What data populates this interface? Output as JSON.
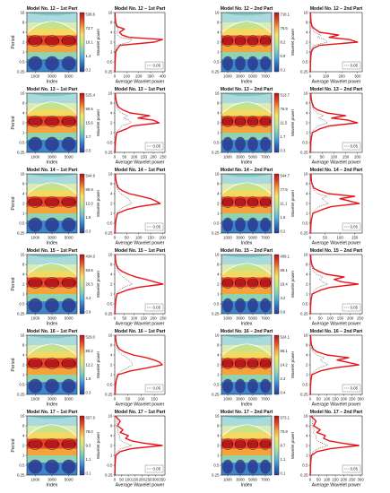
{
  "page": {
    "background": "#ffffff"
  },
  "colors": {
    "line": "#e8141b",
    "axis": "#222222",
    "significance_dash": "#333333",
    "colormap": [
      "#2a3a8f",
      "#2e6fc1",
      "#4fb3d9",
      "#8fd3b0",
      "#c9e58a",
      "#f2e36b",
      "#f6a23a",
      "#e2452a",
      "#b3121a"
    ]
  },
  "common": {
    "period_label": "Period",
    "index_label": "Index",
    "avg_power_label": "Average Wavelet power",
    "colorbar_label": "Wavelet power",
    "period_ticks": [
      "16",
      "8",
      "4",
      "2",
      "1",
      "0.5",
      "0.25"
    ],
    "legend_label": "0.05"
  },
  "chart_data": [
    {
      "type": "heatmap",
      "title": "Model No. 12 – 1st Part",
      "xlabel": "Index",
      "ylabel": "Period",
      "x_ticks": [
        "1000",
        "3000",
        "5000"
      ],
      "colorbar_ticks": [
        "538.6",
        "73.7",
        "10.1",
        "1.4",
        "0.2"
      ],
      "colorbar_label": "Wavelet power",
      "y_ticks": [
        "16",
        "8",
        "4",
        "2",
        "1",
        "0.5",
        "0.25"
      ]
    },
    {
      "type": "line",
      "title": "Model No. 12 – 1st Part",
      "xlabel": "Average Wavelet power",
      "ylabel": "",
      "x_ticks": [
        "0",
        "100",
        "200",
        "300",
        "400"
      ],
      "xlim": [
        0,
        420
      ],
      "legend": "0.05",
      "period": [
        0.25,
        0.35,
        0.5,
        0.7,
        1,
        1.3,
        1.6,
        2,
        2.4,
        2.8,
        3.3,
        4,
        5,
        6,
        8,
        11,
        16
      ],
      "power": [
        0,
        2,
        3,
        5,
        8,
        25,
        45,
        330,
        400,
        120,
        60,
        40,
        80,
        20,
        8,
        4,
        2
      ]
    },
    {
      "type": "heatmap",
      "title": "Model No. 12 – 2nd Part",
      "xlabel": "Index",
      "ylabel": "",
      "x_ticks": [
        "1000",
        "3000",
        "5000",
        "7000"
      ],
      "colorbar_ticks": [
        "718.1",
        "76.5",
        "8.2",
        "0.9",
        "0.1"
      ],
      "colorbar_label": "Wavelet power",
      "y_ticks": [
        "16",
        "8",
        "4",
        "2",
        "1",
        "0.5",
        "0.25"
      ]
    },
    {
      "type": "line",
      "title": "Model No. 12 – 2nd Part",
      "xlabel": "Average Wavelet power",
      "ylabel": "",
      "x_ticks": [
        "0",
        "100",
        "200",
        "300"
      ],
      "xlim": [
        0,
        330
      ],
      "legend": "0.05",
      "period": [
        0.25,
        0.35,
        0.5,
        0.7,
        1,
        1.3,
        1.6,
        2,
        2.4,
        2.8,
        3.3,
        4,
        5,
        6,
        8,
        11,
        16
      ],
      "power": [
        0,
        1,
        2,
        4,
        7,
        20,
        60,
        300,
        250,
        120,
        180,
        60,
        30,
        12,
        6,
        3,
        2
      ]
    },
    {
      "type": "heatmap",
      "title": "Model No. 13 – 1st Part",
      "xlabel": "Index",
      "ylabel": "Period",
      "x_ticks": [
        "1000",
        "3000",
        "5000"
      ],
      "colorbar_ticks": [
        "525.4",
        "90.5",
        "15.6",
        "2.7",
        "0.5"
      ],
      "colorbar_label": "Wavelet power",
      "y_ticks": [
        "16",
        "8",
        "4",
        "2",
        "1",
        "0.5",
        "0.25"
      ]
    },
    {
      "type": "line",
      "title": "Model No. 13 – 1st Part",
      "xlabel": "Average Wavelet power",
      "ylabel": "",
      "x_ticks": [
        "0",
        "50",
        "100",
        "150",
        "200",
        "250"
      ],
      "xlim": [
        0,
        260
      ],
      "legend": "0.05",
      "period": [
        0.25,
        0.35,
        0.5,
        0.7,
        1,
        1.3,
        1.6,
        2,
        2.4,
        2.8,
        3.3,
        4,
        5,
        6,
        8,
        11,
        16
      ],
      "power": [
        0,
        1,
        3,
        6,
        10,
        60,
        90,
        230,
        200,
        120,
        180,
        80,
        40,
        20,
        10,
        5,
        3
      ]
    },
    {
      "type": "heatmap",
      "title": "Model No. 13 – 2nd Part",
      "xlabel": "Index",
      "ylabel": "",
      "x_ticks": [
        "1000",
        "3000",
        "5000",
        "7000"
      ],
      "colorbar_ticks": [
        "513.7",
        "76.9",
        "11.5",
        "1.7",
        "0.3"
      ],
      "colorbar_label": "Wavelet power",
      "y_ticks": [
        "16",
        "8",
        "4",
        "2",
        "1",
        "0.5",
        "0.25"
      ]
    },
    {
      "type": "line",
      "title": "Model No. 13 – 2nd Part",
      "xlabel": "Average Wavelet power",
      "ylabel": "",
      "x_ticks": [
        "0",
        "50",
        "100",
        "150",
        "200"
      ],
      "xlim": [
        0,
        220
      ],
      "legend": "0.05",
      "period": [
        0.25,
        0.35,
        0.5,
        0.7,
        1,
        1.3,
        1.6,
        2,
        2.4,
        2.8,
        3.3,
        4,
        5,
        6,
        8,
        11,
        16
      ],
      "power": [
        0,
        1,
        2,
        5,
        9,
        40,
        80,
        200,
        160,
        90,
        150,
        70,
        30,
        15,
        8,
        4,
        2
      ]
    },
    {
      "type": "heatmap",
      "title": "Model No. 14 – 1st Part",
      "xlabel": "Index",
      "ylabel": "Period",
      "x_ticks": [
        "1000",
        "3000",
        "5000"
      ],
      "colorbar_ticks": [
        "544.9",
        "80.9",
        "12.0",
        "1.8",
        "0.3"
      ],
      "colorbar_label": "Wavelet power",
      "y_ticks": [
        "16",
        "8",
        "4",
        "2",
        "1",
        "0.5",
        "0.25"
      ]
    },
    {
      "type": "line",
      "title": "Model No. 14 – 1st Part",
      "xlabel": "Average Wavelet power",
      "ylabel": "",
      "x_ticks": [
        "0",
        "50",
        "100",
        "150",
        "200"
      ],
      "xlim": [
        0,
        210
      ],
      "legend": "0.05",
      "period": [
        0.25,
        0.35,
        0.5,
        0.7,
        1,
        1.3,
        1.6,
        2,
        2.4,
        2.8,
        3.3,
        4,
        5,
        6,
        8,
        11,
        16
      ],
      "power": [
        0,
        1,
        3,
        6,
        12,
        50,
        100,
        190,
        170,
        150,
        110,
        60,
        30,
        15,
        8,
        4,
        2
      ]
    },
    {
      "type": "heatmap",
      "title": "Model No. 14 – 2nd Part",
      "xlabel": "Index",
      "ylabel": "",
      "x_ticks": [
        "1000",
        "3000",
        "5000",
        "7000"
      ],
      "colorbar_ticks": [
        "544.7",
        "77.6",
        "11.1",
        "1.6",
        "0.2"
      ],
      "colorbar_label": "Wavelet power",
      "y_ticks": [
        "16",
        "8",
        "4",
        "2",
        "1",
        "0.5",
        "0.25"
      ]
    },
    {
      "type": "line",
      "title": "Model No. 14 – 2nd Part",
      "xlabel": "Average Wavelet power",
      "ylabel": "",
      "x_ticks": [
        "0",
        "50",
        "100",
        "150"
      ],
      "xlim": [
        0,
        175
      ],
      "legend": "0.05",
      "period": [
        0.25,
        0.35,
        0.5,
        0.7,
        1,
        1.3,
        1.6,
        2,
        2.4,
        2.8,
        3.3,
        4,
        5,
        6,
        8,
        11,
        16
      ],
      "power": [
        0,
        1,
        2,
        5,
        9,
        40,
        70,
        165,
        130,
        100,
        150,
        60,
        30,
        12,
        6,
        3,
        2
      ]
    },
    {
      "type": "heatmap",
      "title": "Model No. 15 – 1st Part",
      "xlabel": "Index",
      "ylabel": "Period",
      "x_ticks": [
        "1000",
        "3000",
        "5000"
      ],
      "colorbar_ticks": [
        "434.0",
        "93.8",
        "20.3",
        "4.4",
        "0.9"
      ],
      "colorbar_label": "Wavelet power",
      "y_ticks": [
        "16",
        "8",
        "4",
        "2",
        "1",
        "0.5",
        "0.25"
      ]
    },
    {
      "type": "line",
      "title": "Model No. 15 – 1st Part",
      "xlabel": "Average Wavelet power",
      "ylabel": "",
      "x_ticks": [
        "0",
        "50",
        "100",
        "150",
        "200",
        "250"
      ],
      "xlim": [
        0,
        260
      ],
      "legend": "0.05",
      "period": [
        0.25,
        0.35,
        0.5,
        0.7,
        1,
        1.3,
        1.6,
        2,
        2.4,
        2.8,
        3.3,
        4,
        5,
        6,
        8,
        11,
        16
      ],
      "power": [
        0,
        1,
        3,
        6,
        12,
        60,
        120,
        250,
        200,
        160,
        110,
        70,
        35,
        18,
        8,
        4,
        2
      ]
    },
    {
      "type": "heatmap",
      "title": "Model No. 15 – 2nd Part",
      "xlabel": "Index",
      "ylabel": "",
      "x_ticks": [
        "1000",
        "3000",
        "5000",
        "7000"
      ],
      "colorbar_ticks": [
        "409.1",
        "89.1",
        "19.4",
        "4.2",
        "0.9"
      ],
      "colorbar_label": "Wavelet power",
      "y_ticks": [
        "16",
        "8",
        "4",
        "2",
        "1",
        "0.5",
        "0.25"
      ]
    },
    {
      "type": "line",
      "title": "Model No. 15 – 2nd Part",
      "xlabel": "Average Wavelet power",
      "ylabel": "",
      "x_ticks": [
        "0",
        "50",
        "100",
        "150",
        "200",
        "250"
      ],
      "xlim": [
        0,
        260
      ],
      "legend": "0.05",
      "period": [
        0.25,
        0.35,
        0.5,
        0.7,
        1,
        1.3,
        1.6,
        2,
        2.4,
        2.8,
        3.3,
        4,
        5,
        6,
        8,
        11,
        16
      ],
      "power": [
        0,
        1,
        2,
        5,
        10,
        50,
        100,
        240,
        150,
        120,
        170,
        80,
        40,
        18,
        8,
        4,
        2
      ]
    },
    {
      "type": "heatmap",
      "title": "Model No. 16 – 1st Part",
      "xlabel": "Index",
      "ylabel": "Period",
      "x_ticks": [
        "1000",
        "3000",
        "5000"
      ],
      "colorbar_ticks": [
        "529.0",
        "80.2",
        "12.2",
        "1.8",
        "0.3"
      ],
      "colorbar_label": "Wavelet power",
      "y_ticks": [
        "16",
        "8",
        "4",
        "2",
        "1",
        "0.5",
        "0.25"
      ]
    },
    {
      "type": "line",
      "title": "Model No. 16 – 1st Part",
      "xlabel": "Average Wavelet power",
      "ylabel": "",
      "x_ticks": [
        "0",
        "50",
        "100",
        "150"
      ],
      "xlim": [
        0,
        190
      ],
      "legend": "0.05",
      "period": [
        0.25,
        0.35,
        0.5,
        0.7,
        1,
        1.3,
        1.6,
        2,
        2.4,
        2.8,
        3.3,
        4,
        5,
        6,
        8,
        11,
        16
      ],
      "power": [
        0,
        1,
        3,
        6,
        12,
        60,
        120,
        180,
        170,
        150,
        120,
        70,
        35,
        18,
        8,
        4,
        2
      ]
    },
    {
      "type": "heatmap",
      "title": "Model No. 16 – 2nd Part",
      "xlabel": "Index",
      "ylabel": "",
      "x_ticks": [
        "1000",
        "3000",
        "5000",
        "7000"
      ],
      "colorbar_ticks": [
        "524.1",
        "86.1",
        "14.2",
        "2.3",
        "0.4"
      ],
      "colorbar_label": "Wavelet power",
      "y_ticks": [
        "16",
        "8",
        "4",
        "2",
        "1",
        "0.5",
        "0.25"
      ]
    },
    {
      "type": "line",
      "title": "Model No. 16 – 2nd Part",
      "xlabel": "Average Wavelet power",
      "ylabel": "",
      "x_ticks": [
        "0",
        "50",
        "100",
        "150",
        "200",
        "250",
        "300"
      ],
      "xlim": [
        0,
        310
      ],
      "legend": "0.05",
      "period": [
        0.25,
        0.35,
        0.5,
        0.7,
        1,
        1.3,
        1.6,
        2,
        2.4,
        2.8,
        3.3,
        4,
        5,
        6,
        8,
        11,
        16
      ],
      "power": [
        0,
        1,
        2,
        5,
        10,
        60,
        140,
        290,
        220,
        160,
        230,
        100,
        40,
        18,
        8,
        4,
        2
      ]
    },
    {
      "type": "heatmap",
      "title": "Model No. 17 – 1st Part",
      "xlabel": "Index",
      "ylabel": "Period",
      "x_ticks": [
        "1000",
        "3000",
        "5000"
      ],
      "colorbar_ticks": [
        "657.6",
        "78.0",
        "9.3",
        "1.1",
        "0.1"
      ],
      "colorbar_label": "Wavelet power",
      "y_ticks": [
        "16",
        "8",
        "4",
        "2",
        "1",
        "0.5",
        "0.25"
      ]
    },
    {
      "type": "line",
      "title": "Model No. 17 – 1st Part",
      "xlabel": "Average Wavelet power",
      "ylabel": "",
      "x_ticks": [
        "0",
        "50",
        "100",
        "150",
        "200",
        "250",
        "300",
        "350"
      ],
      "xlim": [
        0,
        370
      ],
      "legend": "0.05",
      "period": [
        0.25,
        0.35,
        0.5,
        0.7,
        1,
        1.3,
        1.6,
        2,
        2.4,
        2.8,
        3.3,
        4,
        5,
        6,
        8,
        11,
        16
      ],
      "power": [
        0,
        1,
        2,
        4,
        8,
        40,
        120,
        350,
        200,
        120,
        80,
        100,
        40,
        60,
        20,
        40,
        5
      ]
    },
    {
      "type": "heatmap",
      "title": "Model No. 17 – 2nd Part",
      "xlabel": "Index",
      "ylabel": "",
      "x_ticks": [
        "1000",
        "3000",
        "5000",
        "7000"
      ],
      "colorbar_ticks": [
        "573.1",
        "70.8",
        "8.7",
        "1.1",
        "0.1"
      ],
      "colorbar_label": "Wavelet power",
      "y_ticks": [
        "16",
        "8",
        "4",
        "2",
        "1",
        "0.5",
        "0.25"
      ]
    },
    {
      "type": "line",
      "title": "Model No. 17 – 2nd Part",
      "xlabel": "Average Wavelet power",
      "ylabel": "",
      "x_ticks": [
        "0",
        "50",
        "100",
        "150",
        "200",
        "250",
        "300"
      ],
      "xlim": [
        0,
        310
      ],
      "legend": "0.05",
      "period": [
        0.25,
        0.35,
        0.5,
        0.7,
        1,
        1.3,
        1.6,
        2,
        2.4,
        2.8,
        3.3,
        4,
        5,
        6,
        8,
        11,
        16
      ],
      "power": [
        0,
        1,
        2,
        4,
        8,
        40,
        120,
        290,
        180,
        110,
        80,
        90,
        40,
        60,
        20,
        35,
        5
      ]
    }
  ]
}
